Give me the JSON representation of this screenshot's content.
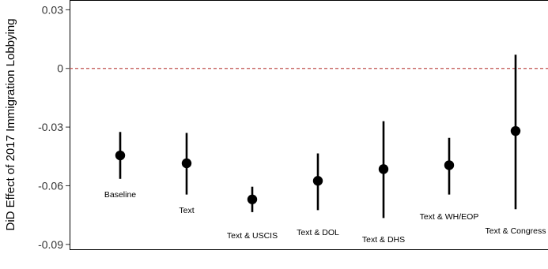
{
  "chart_data": {
    "type": "scatter",
    "ylabel": "DiD Effect of 2017 Immigration Lobbying",
    "xlabel": "",
    "title": "",
    "ylim": [
      -0.0925,
      0.035
    ],
    "yticks": [
      0.03,
      0,
      -0.03,
      -0.06,
      -0.09
    ],
    "ytick_labels": [
      "0.03",
      "0",
      "-0.03",
      "-0.06",
      "-0.09"
    ],
    "reference_line": {
      "y": 0,
      "style": "dashed",
      "color": "#c0504d"
    },
    "grid": false,
    "colors": {
      "point": "#000000",
      "errorbar": "#000000",
      "reference": "#c0504d",
      "frame": "#000000"
    },
    "points": [
      {
        "label": "Baseline",
        "estimate": -0.0445,
        "lower": -0.0565,
        "upper": -0.0325
      },
      {
        "label": "Text",
        "estimate": -0.0485,
        "lower": -0.0645,
        "upper": -0.033
      },
      {
        "label": "Text & USCIS",
        "estimate": -0.067,
        "lower": -0.0735,
        "upper": -0.0605
      },
      {
        "label": "Text & DOL",
        "estimate": -0.0575,
        "lower": -0.0725,
        "upper": -0.0435
      },
      {
        "label": "Text & DHS",
        "estimate": -0.0515,
        "lower": -0.0765,
        "upper": -0.027
      },
      {
        "label": "Text & WH/EOP",
        "estimate": -0.0495,
        "lower": -0.0645,
        "upper": -0.0355
      },
      {
        "label": "Text & Congress",
        "estimate": -0.032,
        "lower": -0.072,
        "upper": 0.007
      }
    ]
  }
}
